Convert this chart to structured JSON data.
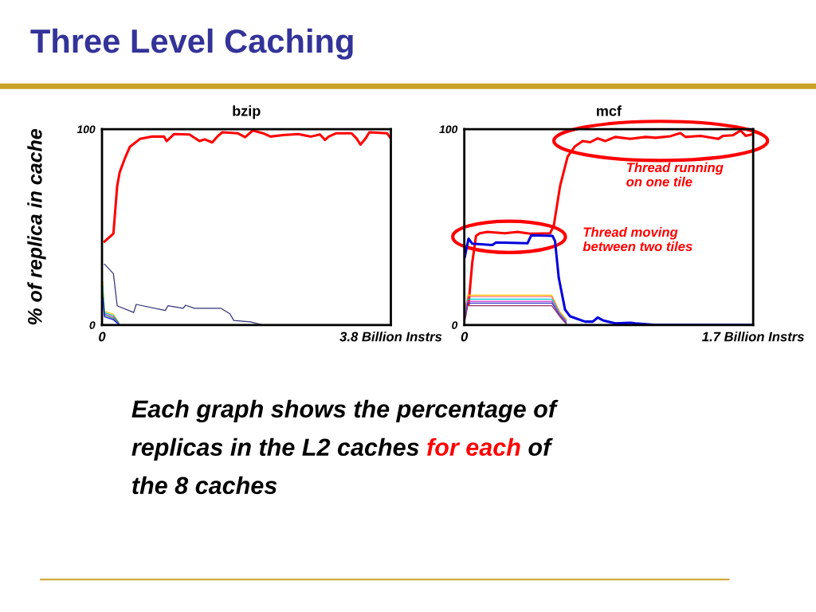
{
  "chart_data": [
    {
      "type": "other",
      "title": "Three Level Caching",
      "annotations": [
        "Each graph shows the percentage of",
        "replicas in the L2 caches ",
        "for each",
        " of",
        "the 8 caches"
      ]
    },
    {
      "type": "line",
      "title": "bzip",
      "ylabel": "% of replica in cache",
      "xlim": [
        0,
        3.8
      ],
      "ylim": [
        0,
        100
      ],
      "xticks": [
        0,
        {
          "value": 3.8,
          "label": "3.8 Billion Instrs"
        }
      ],
      "yticks": [
        0,
        100
      ],
      "series": [
        {
          "color": "#ff0000",
          "x": [
            0.033,
            0.15,
            0.2,
            0.233,
            0.3,
            0.367,
            0.417,
            0.5,
            0.65,
            0.817,
            0.85,
            0.95,
            1.15,
            1.283,
            1.35,
            1.45,
            1.517,
            1.583,
            1.783,
            1.883,
            1.983,
            2.117,
            2.217,
            2.383,
            2.583,
            2.75,
            2.867,
            2.933,
            2.983,
            3.083,
            3.283,
            3.35,
            3.4,
            3.467,
            3.517,
            3.75,
            3.8
          ],
          "values": [
            42.6,
            46.7,
            71,
            78,
            85,
            91,
            92.5,
            95,
            96.2,
            96.2,
            93.9,
            97.5,
            97.3,
            93.9,
            94.8,
            93.2,
            96.2,
            98.4,
            97.9,
            95.9,
            99.3,
            97.9,
            96.2,
            97.0,
            97.5,
            96.2,
            97.3,
            94.5,
            96.2,
            97.9,
            97.9,
            95.2,
            92.1,
            95.2,
            98.4,
            97.9,
            95.2
          ]
        },
        {
          "color": "#333377",
          "x": [
            0.033,
            0.15,
            0.2,
            0.417,
            0.45,
            0.833,
            0.867,
            1.067,
            1.1,
            1.217,
            1.567,
            1.683,
            1.733,
            1.95,
            2.117,
            3.8
          ],
          "values": [
            31,
            26.2,
            9.8,
            6.4,
            10.5,
            7.4,
            9.8,
            8.5,
            10.1,
            8.5,
            8.5,
            5.7,
            2.3,
            1.6,
            0,
            0
          ]
        },
        {
          "color": "#ffcc00",
          "x": [
            0.01,
            0.033,
            0.15,
            0.22
          ],
          "values": [
            22,
            7,
            5.5,
            1.5
          ]
        },
        {
          "color": "#00cccc",
          "x": [
            0.01,
            0.033,
            0.15,
            0.22
          ],
          "values": [
            20,
            6.3,
            4.8,
            1.2
          ]
        },
        {
          "color": "#cc33cc",
          "x": [
            0.033,
            0.15,
            0.22
          ],
          "values": [
            5.6,
            4.1,
            0.9
          ]
        },
        {
          "color": "#33aa33",
          "x": [
            0.01,
            0.033,
            0.15,
            0.22
          ],
          "values": [
            16,
            4.9,
            3.4,
            0.6
          ]
        },
        {
          "color": "#0000ff",
          "x": [
            0.01,
            0.033,
            0.15,
            0.22
          ],
          "values": [
            14,
            4.2,
            2.7,
            0.4
          ]
        }
      ]
    },
    {
      "type": "line",
      "title": "mcf",
      "xlim": [
        0,
        1.7
      ],
      "ylim": [
        0,
        100
      ],
      "xticks": [
        0,
        {
          "value": 1.7,
          "label": "1.7 Billion Instrs"
        }
      ],
      "yticks": [
        0,
        100
      ],
      "annotations": [
        "Thread running\non one tile",
        "Thread moving\nbetween two tiles"
      ],
      "series": [
        {
          "color": "#ff0000",
          "x": [
            0.003,
            0.025,
            0.047,
            0.069,
            0.091,
            0.136,
            0.239,
            0.313,
            0.387,
            0.505,
            0.527,
            0.564,
            0.608,
            0.652,
            0.697,
            0.741,
            0.785,
            0.829,
            0.888,
            0.977,
            1.066,
            1.125,
            1.213,
            1.272,
            1.302,
            1.39,
            1.494,
            1.523,
            1.582,
            1.626,
            1.656,
            1.693
          ],
          "values": [
            10.5,
            10.5,
            32,
            45.5,
            46.8,
            47.5,
            46.8,
            47.5,
            46.6,
            46.8,
            50.9,
            71.1,
            85.9,
            91.3,
            93.9,
            93.3,
            95.3,
            93.9,
            96,
            95,
            96,
            95.6,
            96.4,
            98,
            96,
            96.6,
            95,
            96.6,
            96.9,
            99.3,
            96.6,
            97.3
          ]
        },
        {
          "color": "#0000dd",
          "x": [
            0.003,
            0.025,
            0.047,
            0.165,
            0.187,
            0.372,
            0.394,
            0.519,
            0.534,
            0.556,
            0.593,
            0.623,
            0.711,
            0.756,
            0.785,
            0.815,
            0.888,
            0.977,
            1.006,
            1.125,
            1.7
          ],
          "values": [
            34.7,
            44.1,
            41.5,
            40.8,
            42.1,
            41.7,
            45.8,
            45.5,
            42.8,
            24,
            7.8,
            4.4,
            1.7,
            1.7,
            3.8,
            2.4,
            0.8,
            1.1,
            0.8,
            0,
            0
          ]
        },
        {
          "color": "#ffcc00",
          "x": [
            0.006,
            0.02,
            0.515,
            0.56,
            0.6
          ],
          "values": [
            8,
            15.2,
            15.2,
            7,
            3
          ]
        },
        {
          "color": "#ff6666",
          "x": [
            0.006,
            0.02,
            0.515,
            0.56,
            0.6
          ],
          "values": [
            7,
            14.5,
            14.5,
            6.5,
            2.5
          ]
        },
        {
          "color": "#00cccc",
          "x": [
            0.006,
            0.02,
            0.515,
            0.56,
            0.6
          ],
          "values": [
            6,
            13.2,
            13.2,
            6,
            2
          ]
        },
        {
          "color": "#cc33cc",
          "x": [
            0.006,
            0.02,
            0.515,
            0.56,
            0.6
          ],
          "values": [
            5,
            12.1,
            12.1,
            5.5,
            1.5
          ]
        },
        {
          "color": "#3333cc",
          "x": [
            0.006,
            0.02,
            0.515,
            0.56,
            0.6
          ],
          "values": [
            4,
            11.2,
            11.2,
            5,
            1
          ]
        },
        {
          "color": "#993366",
          "x": [
            0.006,
            0.02,
            0.515,
            0.56,
            0.6
          ],
          "values": [
            3,
            9.8,
            9.8,
            4.5,
            0.5
          ]
        }
      ]
    }
  ]
}
